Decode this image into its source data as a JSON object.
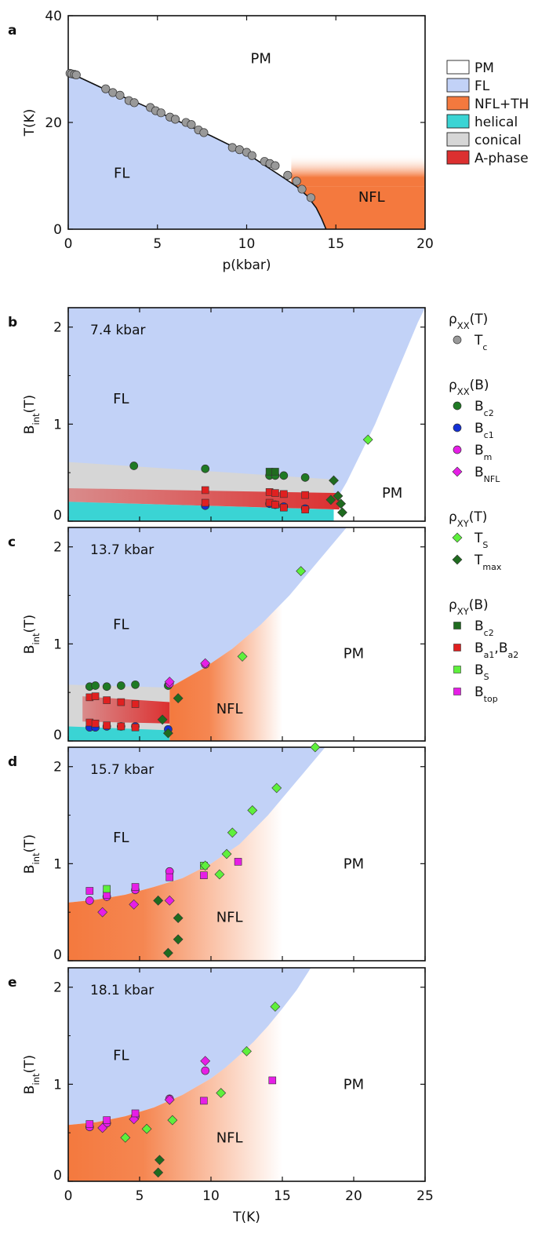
{
  "colors": {
    "PM": "#ffffff",
    "FL": "#c2d2f7",
    "NFL": "#f4793e",
    "helical": "#3ad4d4",
    "conical": "#d6d6d6",
    "A-phase": "#dc3030",
    "Tc": "#999999",
    "Bc2": "#1f7a24",
    "Bc1": "#1330d6",
    "Bm": "#e61ee6",
    "BNFL": "#e61ee6",
    "TS": "#5ef03c",
    "Tmax": "#1f6b1f",
    "Bc2_xy": "#1f6b1f",
    "Ba": "#e02020",
    "BS": "#5ef03c",
    "Btop": "#e61ee6"
  },
  "legend_a": {
    "entries": [
      {
        "label": "PM",
        "color": "#ffffff"
      },
      {
        "label": "FL",
        "color": "#c2d2f7"
      },
      {
        "label": "NFL+TH",
        "color": "#f4793e"
      },
      {
        "label": "helical",
        "color": "#3ad4d4"
      },
      {
        "label": "conical",
        "color": "#d6d6d6"
      },
      {
        "label": "A-phase",
        "color": "#dc3030"
      }
    ]
  },
  "legend_b": {
    "groups": [
      {
        "title": "ρ",
        "title_sub": "XX",
        "title_suffix": "(T)",
        "items": [
          {
            "marker": "circle",
            "color": "#999999",
            "label": "T",
            "sub": "c"
          }
        ]
      },
      {
        "title": "ρ",
        "title_sub": "XX",
        "title_suffix": "(B)",
        "items": [
          {
            "marker": "circle",
            "color": "#1f7a24",
            "label": "B",
            "sub": "c2"
          },
          {
            "marker": "circle",
            "color": "#1330d6",
            "label": "B",
            "sub": "c1"
          },
          {
            "marker": "circle",
            "color": "#e61ee6",
            "label": "B",
            "sub": "m"
          },
          {
            "marker": "diamond",
            "color": "#e61ee6",
            "label": "B",
            "sub": "NFL"
          }
        ]
      },
      {
        "title": "ρ",
        "title_sub": "XY",
        "title_suffix": "(T)",
        "items": [
          {
            "marker": "diamond",
            "color": "#5ef03c",
            "label": "T",
            "sub": "S"
          },
          {
            "marker": "diamond",
            "color": "#1f6b1f",
            "label": "T",
            "sub": "max"
          }
        ]
      },
      {
        "title": "ρ",
        "title_sub": "XY",
        "title_suffix": "(B)",
        "items": [
          {
            "marker": "square",
            "color": "#1f6b1f",
            "label": "B",
            "sub": "c2"
          },
          {
            "marker": "square",
            "color": "#e02020",
            "label": "B",
            "sub": "a1",
            "label2": ",B",
            "sub2": "a2"
          },
          {
            "marker": "square",
            "color": "#5ef03c",
            "label": "B",
            "sub": "S"
          },
          {
            "marker": "square",
            "color": "#e61ee6",
            "label": "B",
            "sub": "top"
          }
        ]
      }
    ]
  },
  "chart_data": [
    {
      "panel": "a",
      "type": "scatter",
      "xlabel": "p(kbar)",
      "ylabel": "T(K)",
      "xlim": [
        0,
        20
      ],
      "ylim": [
        0,
        40
      ],
      "xticks": [
        0,
        5,
        10,
        15,
        20
      ],
      "yticks": [
        0,
        20,
        40
      ],
      "region_labels": [
        {
          "text": "PM",
          "x": 10.8,
          "y": 32
        },
        {
          "text": "FL",
          "x": 3,
          "y": 10.5
        },
        {
          "text": "NFL",
          "x": 17,
          "y": 6
        }
      ],
      "phase_boundary": {
        "x": [
          0,
          0.4,
          2,
          4,
          6,
          8,
          10,
          11,
          12,
          12.8,
          13.4,
          13.9,
          14.2,
          14.45
        ],
        "y": [
          29.3,
          28.8,
          26.3,
          23.5,
          20.5,
          17.5,
          14.2,
          12.0,
          9.8,
          8.0,
          6.2,
          4.0,
          2.0,
          0
        ]
      },
      "series": [
        {
          "name": "Tc",
          "marker": "circle",
          "x": [
            0.1,
            0.2,
            0.35,
            0.45,
            2.1,
            2.5,
            2.9,
            3.4,
            3.7,
            4.6,
            4.9,
            5.2,
            5.7,
            6.0,
            6.6,
            6.9,
            7.3,
            7.6,
            9.2,
            9.6,
            10.0,
            10.3,
            11.0,
            11.3,
            11.6,
            12.3,
            12.8,
            13.1,
            13.6
          ],
          "y": [
            29.2,
            29.1,
            29.0,
            28.9,
            26.3,
            25.6,
            25.1,
            24.1,
            23.7,
            22.8,
            22.2,
            21.8,
            21.0,
            20.6,
            20.0,
            19.6,
            18.6,
            18.1,
            15.3,
            14.9,
            14.4,
            13.8,
            12.7,
            12.3,
            11.9,
            10.1,
            9.0,
            7.5,
            5.9
          ]
        }
      ]
    },
    {
      "panel": "b",
      "type": "scatter",
      "annotation": "7.4 kbar",
      "xlabel": "",
      "ylabel": "B",
      "ylabel_sub": "int",
      "ylabel_suffix": "(T)",
      "xlim": [
        0,
        25
      ],
      "ylim": [
        0,
        2.2
      ],
      "xticks": [
        0,
        5,
        10,
        15,
        20,
        25
      ],
      "yticks": [
        0,
        1,
        2
      ],
      "region_labels": [
        {
          "text": "FL",
          "x": 3.7,
          "y": 1.26
        },
        {
          "text": "PM",
          "x": 22.7,
          "y": 0.29
        }
      ],
      "fl_boundary": {
        "x": [
          0,
          17.5,
          18.5,
          19.5,
          20.5,
          21.5,
          22.5,
          23.5,
          24.5,
          25.0
        ],
        "y": [
          0,
          0,
          0.15,
          0.4,
          0.7,
          1.0,
          1.35,
          1.7,
          2.05,
          2.2
        ]
      },
      "phase_bands": [
        {
          "phase": "conical",
          "x": [
            0,
            18.6,
            18.6,
            0
          ],
          "y": [
            0.61,
            0.43,
            0,
            0
          ]
        },
        {
          "phase": "A-phase",
          "x": [
            0,
            19.0,
            19.0,
            0
          ],
          "y": [
            0.34,
            0.29,
            0.12,
            0.2
          ]
        },
        {
          "phase": "helical",
          "x": [
            0,
            18.6,
            18.6,
            0
          ],
          "y": [
            0.2,
            0.12,
            0,
            0
          ]
        }
      ],
      "series": [
        {
          "name": "Bc2",
          "marker": "circle",
          "x": [
            4.6,
            9.6,
            14.1,
            14.5,
            15.1,
            16.6
          ],
          "y": [
            0.57,
            0.54,
            0.47,
            0.47,
            0.47,
            0.45
          ]
        },
        {
          "name": "Bc1",
          "marker": "circle",
          "x": [
            9.6,
            14.1,
            14.5,
            15.1,
            16.6
          ],
          "y": [
            0.16,
            0.18,
            0.17,
            0.15,
            0.13
          ]
        },
        {
          "name": "Bc2 (ρXY)",
          "marker": "square",
          "x": [
            14.1,
            14.5
          ],
          "y": [
            0.51,
            0.51
          ]
        },
        {
          "name": "Ba1,Ba2",
          "marker": "square",
          "x": [
            9.6,
            9.6,
            14.1,
            14.5,
            15.1,
            16.6,
            14.1,
            14.5,
            15.1,
            16.6
          ],
          "y": [
            0.32,
            0.19,
            0.3,
            0.29,
            0.28,
            0.27,
            0.19,
            0.17,
            0.14,
            0.12
          ]
        },
        {
          "name": "TS",
          "marker": "diamond",
          "x": [
            21.0
          ],
          "y": [
            0.84
          ]
        },
        {
          "name": "Tmax",
          "marker": "diamond",
          "x": [
            18.6,
            18.4,
            18.9,
            19.1,
            19.2
          ],
          "y": [
            0.42,
            0.22,
            0.26,
            0.18,
            0.09
          ]
        }
      ]
    },
    {
      "panel": "c",
      "type": "scatter",
      "annotation": "13.7 kbar",
      "xlabel": "",
      "ylabel": "B",
      "ylabel_sub": "int",
      "ylabel_suffix": "(T)",
      "xlim": [
        0,
        25
      ],
      "ylim": [
        0,
        2.2
      ],
      "xticks": [
        0,
        5,
        10,
        15,
        20,
        25
      ],
      "yticks": [
        0,
        1,
        2
      ],
      "region_labels": [
        {
          "text": "FL",
          "x": 3.7,
          "y": 1.2
        },
        {
          "text": "NFL",
          "x": 11.3,
          "y": 0.33
        },
        {
          "text": "PM",
          "x": 20.0,
          "y": 0.9
        }
      ],
      "fl_boundary": {
        "x": [
          0,
          7.1,
          7.1,
          9.5,
          11.5,
          13.5,
          15.5,
          17.5,
          19.5,
          21.5,
          22.9,
          25
        ],
        "y": [
          0.53,
          0.53,
          0.55,
          0.75,
          0.95,
          1.2,
          1.5,
          1.85,
          2.2,
          2.2,
          2.2,
          2.2
        ]
      },
      "nfl_fade_until": 15.0,
      "phase_bands": [
        {
          "phase": "conical",
          "x": [
            0,
            7.1,
            7.1,
            0
          ],
          "y": [
            0.58,
            0.55,
            0,
            0
          ]
        },
        {
          "phase": "A-phase",
          "x": [
            1.0,
            7.1,
            7.1,
            1.0
          ],
          "y": [
            0.46,
            0.4,
            0.18,
            0.2
          ]
        },
        {
          "phase": "helical",
          "x": [
            0,
            7.1,
            7.1,
            0
          ],
          "y": [
            0.15,
            0.11,
            0,
            0
          ]
        }
      ],
      "series": [
        {
          "name": "Bc2",
          "marker": "circle",
          "x": [
            1.5,
            1.9,
            2.7,
            3.7,
            4.7,
            7.0
          ],
          "y": [
            0.56,
            0.57,
            0.56,
            0.57,
            0.58,
            0.57
          ]
        },
        {
          "name": "Bc1",
          "marker": "circle",
          "x": [
            1.5,
            1.9,
            2.7,
            3.7,
            4.7,
            7.0
          ],
          "y": [
            0.14,
            0.14,
            0.15,
            0.15,
            0.15,
            0.12
          ]
        },
        {
          "name": "Bm",
          "marker": "circle",
          "x": [
            7.1,
            9.6
          ],
          "y": [
            0.59,
            0.79
          ]
        },
        {
          "name": "BNFL",
          "marker": "diamond",
          "x": [
            7.1,
            9.6
          ],
          "y": [
            0.61,
            0.8
          ]
        },
        {
          "name": "Ba1,Ba2",
          "marker": "square",
          "x": [
            1.5,
            1.9,
            2.7,
            3.7,
            4.7,
            1.5,
            1.9,
            2.7,
            3.7,
            4.7
          ],
          "y": [
            0.45,
            0.46,
            0.42,
            0.4,
            0.38,
            0.19,
            0.18,
            0.16,
            0.15,
            0.14
          ]
        },
        {
          "name": "TS",
          "marker": "diamond",
          "x": [
            12.2,
            16.3
          ],
          "y": [
            0.87,
            1.75
          ]
        },
        {
          "name": "Tmax",
          "marker": "diamond",
          "x": [
            6.6,
            7.7,
            7.0
          ],
          "y": [
            0.22,
            0.44,
            0.08
          ]
        }
      ]
    },
    {
      "panel": "d",
      "type": "scatter",
      "annotation": "15.7 kbar",
      "xlabel": "",
      "ylabel": "B",
      "ylabel_sub": "int",
      "ylabel_suffix": "(T)",
      "xlim": [
        0,
        25
      ],
      "ylim": [
        0,
        2.2
      ],
      "xticks": [
        0,
        5,
        10,
        15,
        20,
        25
      ],
      "yticks": [
        0,
        1,
        2
      ],
      "region_labels": [
        {
          "text": "FL",
          "x": 3.7,
          "y": 1.27
        },
        {
          "text": "NFL",
          "x": 11.3,
          "y": 0.45
        },
        {
          "text": "PM",
          "x": 20.0,
          "y": 1.0
        }
      ],
      "fl_boundary": {
        "x": [
          0,
          2,
          4,
          6,
          8,
          10,
          12,
          14,
          16,
          18,
          20,
          25
        ],
        "y": [
          0.6,
          0.63,
          0.68,
          0.76,
          0.85,
          1.0,
          1.2,
          1.5,
          1.85,
          2.2,
          2.2,
          2.2
        ]
      },
      "nfl_fade_until": 15.0,
      "series": [
        {
          "name": "Bm",
          "marker": "circle",
          "x": [
            1.5,
            2.7,
            4.7,
            7.1
          ],
          "y": [
            0.62,
            0.66,
            0.73,
            0.92
          ]
        },
        {
          "name": "BNFL",
          "marker": "diamond",
          "x": [
            2.4,
            4.6,
            7.1
          ],
          "y": [
            0.5,
            0.58,
            0.62
          ]
        },
        {
          "name": "Btop",
          "marker": "square",
          "x": [
            1.5,
            2.7,
            4.7,
            7.1,
            9.5,
            11.9
          ],
          "y": [
            0.72,
            0.68,
            0.76,
            0.86,
            0.88,
            1.02
          ]
        },
        {
          "name": "BS",
          "marker": "square",
          "x": [
            2.7,
            9.5
          ],
          "y": [
            0.74,
            0.98
          ]
        },
        {
          "name": "TS",
          "marker": "diamond",
          "x": [
            9.6,
            10.6,
            11.1,
            11.5,
            12.9,
            14.6,
            17.3
          ],
          "y": [
            0.98,
            0.89,
            1.1,
            1.32,
            1.55,
            1.78,
            2.2
          ]
        },
        {
          "name": "Tmax",
          "marker": "diamond",
          "x": [
            6.3,
            7.7,
            7.7,
            7.0
          ],
          "y": [
            0.62,
            0.44,
            0.22,
            0.08
          ]
        }
      ]
    },
    {
      "panel": "e",
      "type": "scatter",
      "annotation": "18.1 kbar",
      "xlabel": "T(K)",
      "ylabel": "B",
      "ylabel_sub": "int",
      "ylabel_suffix": "(T)",
      "xlim": [
        0,
        25
      ],
      "ylim": [
        0,
        2.2
      ],
      "xticks": [
        0,
        5,
        10,
        15,
        20,
        25
      ],
      "yticks": [
        0,
        1,
        2
      ],
      "region_labels": [
        {
          "text": "FL",
          "x": 3.7,
          "y": 1.3
        },
        {
          "text": "NFL",
          "x": 11.3,
          "y": 0.45
        },
        {
          "text": "PM",
          "x": 20.0,
          "y": 1.0
        }
      ],
      "fl_boundary": {
        "x": [
          0,
          2,
          4,
          6,
          8,
          10,
          11,
          12,
          13,
          14,
          15,
          16,
          17,
          18.0,
          25
        ],
        "y": [
          0.58,
          0.61,
          0.67,
          0.76,
          0.89,
          1.06,
          1.17,
          1.3,
          1.44,
          1.6,
          1.78,
          1.97,
          2.2,
          2.2,
          2.2
        ]
      },
      "nfl_fade_until": 15.0,
      "series": [
        {
          "name": "Bm",
          "marker": "circle",
          "x": [
            1.5,
            2.7,
            4.7,
            7.1,
            9.6
          ],
          "y": [
            0.56,
            0.6,
            0.67,
            0.85,
            1.14
          ]
        },
        {
          "name": "BNFL",
          "marker": "diamond",
          "x": [
            2.4,
            4.6,
            7.1,
            9.6
          ],
          "y": [
            0.55,
            0.64,
            0.84,
            1.24
          ]
        },
        {
          "name": "Btop",
          "marker": "square",
          "x": [
            1.5,
            2.7,
            4.7,
            9.5,
            14.3
          ],
          "y": [
            0.59,
            0.63,
            0.7,
            0.83,
            1.04
          ]
        },
        {
          "name": "TS",
          "marker": "diamond",
          "x": [
            4.0,
            5.5,
            7.3,
            10.7,
            12.5,
            14.5
          ],
          "y": [
            0.45,
            0.54,
            0.63,
            0.91,
            1.34,
            1.8
          ]
        },
        {
          "name": "Tmax",
          "marker": "diamond",
          "x": [
            6.4,
            6.3
          ],
          "y": [
            0.22,
            0.09
          ]
        }
      ]
    }
  ]
}
